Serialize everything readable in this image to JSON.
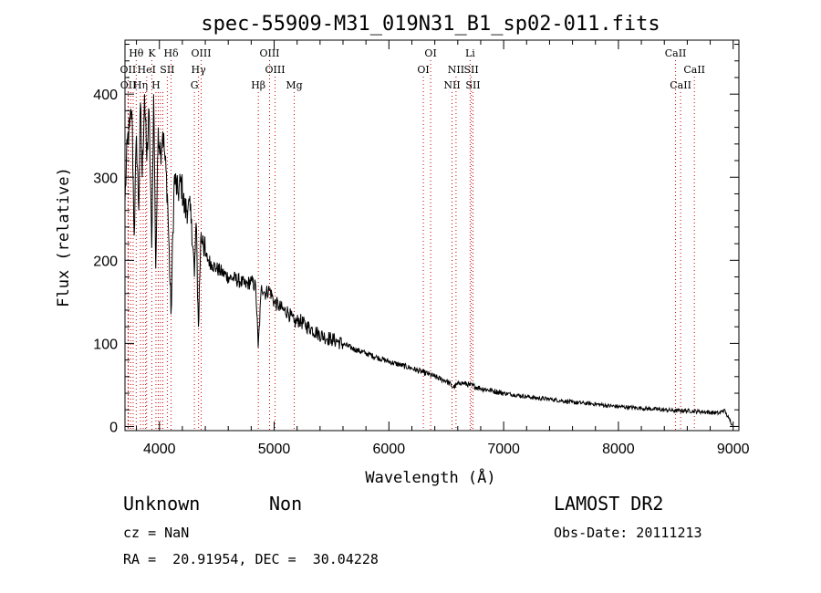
{
  "chart_data": {
    "type": "line",
    "title": "spec-55909-M31_019N31_B1_sp02-011.fits",
    "xlabel": "Wavelength (Å)",
    "ylabel": "Flux (relative)",
    "xlim": [
      3700,
      9050
    ],
    "ylim": [
      -5,
      465
    ],
    "xticks": [
      4000,
      5000,
      6000,
      7000,
      8000,
      9000
    ],
    "yticks": [
      0,
      100,
      200,
      300,
      400
    ],
    "grid": false,
    "line_color": "#000000",
    "marker_color": "#cc0000",
    "series": [
      {
        "x": [
          3700,
          3720,
          3740,
          3760,
          3780,
          3800,
          3820,
          3835,
          3850,
          3870,
          3890,
          3910,
          3933,
          3950,
          3968,
          3990,
          4010,
          4030,
          4050,
          4070,
          4101,
          4130,
          4160,
          4190,
          4220,
          4250,
          4280,
          4305,
          4320,
          4340,
          4360,
          4380,
          4400,
          4430,
          4460,
          4500,
          4550,
          4600,
          4650,
          4700,
          4750,
          4800,
          4840,
          4861,
          4890,
          4920,
          4960,
          5000,
          5040,
          5080,
          5120,
          5175,
          5220,
          5270,
          5320,
          5380,
          5440,
          5500,
          5560,
          5620,
          5700,
          5800,
          5900,
          6000,
          6100,
          6200,
          6300,
          6350,
          6400,
          6450,
          6500,
          6563,
          6620,
          6700,
          6800,
          6900,
          7000,
          7100,
          7200,
          7300,
          7400,
          7500,
          7600,
          7700,
          7800,
          7900,
          8000,
          8100,
          8200,
          8300,
          8400,
          8500,
          8600,
          8700,
          8800,
          8880,
          8920,
          8960,
          8990
        ],
        "y": [
          270,
          340,
          360,
          380,
          230,
          350,
          260,
          390,
          300,
          400,
          320,
          380,
          215,
          400,
          190,
          360,
          330,
          355,
          320,
          280,
          135,
          300,
          280,
          295,
          260,
          265,
          250,
          180,
          245,
          120,
          225,
          230,
          205,
          200,
          195,
          190,
          185,
          180,
          178,
          175,
          170,
          175,
          168,
          95,
          170,
          160,
          165,
          150,
          145,
          140,
          138,
          125,
          128,
          122,
          118,
          112,
          108,
          105,
          102,
          98,
          93,
          88,
          83,
          78,
          74,
          70,
          65,
          63,
          60,
          57,
          55,
          47,
          53,
          50,
          46,
          43,
          40,
          38,
          36,
          34,
          33,
          31,
          29,
          28,
          27,
          25,
          24,
          23,
          22,
          21,
          20,
          19,
          19,
          18,
          17,
          16,
          20,
          10,
          3
        ]
      }
    ],
    "line_markers": [
      {
        "label": "Hθ",
        "wavelength": 3798,
        "row": 0
      },
      {
        "label": "K",
        "wavelength": 3934,
        "row": 0
      },
      {
        "label": "Hδ",
        "wavelength": 4102,
        "row": 0
      },
      {
        "label": "OIII",
        "wavelength": 4364,
        "row": 0
      },
      {
        "label": "OIII",
        "wavelength": 4960,
        "row": 0
      },
      {
        "label": "OI",
        "wavelength": 6364,
        "row": 0
      },
      {
        "label": "Li",
        "wavelength": 6708,
        "row": 0
      },
      {
        "label": "CaII",
        "wavelength": 8498,
        "row": 0
      },
      {
        "label": "OII",
        "wavelength": 3727,
        "row": 1
      },
      {
        "label": "HeI",
        "wavelength": 3889,
        "row": 1
      },
      {
        "label": "SII",
        "wavelength": 4069,
        "row": 1
      },
      {
        "label": "Hγ",
        "wavelength": 4341,
        "row": 1
      },
      {
        "label": "OIII",
        "wavelength": 5008,
        "row": 1
      },
      {
        "label": "OI",
        "wavelength": 6300,
        "row": 1
      },
      {
        "label": "NII",
        "wavelength": 6585,
        "row": 1
      },
      {
        "label": "SII",
        "wavelength": 6718,
        "row": 1
      },
      {
        "label": "CaII",
        "wavelength": 8662,
        "row": 1
      },
      {
        "label": "OII",
        "wavelength": 3729,
        "row": 2
      },
      {
        "label": "Hη",
        "wavelength": 3835,
        "row": 2
      },
      {
        "label": "H",
        "wavelength": 3970,
        "row": 2
      },
      {
        "label": "G",
        "wavelength": 4305,
        "row": 2
      },
      {
        "label": "Hβ",
        "wavelength": 4862,
        "row": 2
      },
      {
        "label": "Mg",
        "wavelength": 5175,
        "row": 2
      },
      {
        "label": "NII",
        "wavelength": 6550,
        "row": 2
      },
      {
        "label": "SII",
        "wavelength": 6733,
        "row": 2
      },
      {
        "label": "CaII",
        "wavelength": 8542,
        "row": 2
      }
    ],
    "extra_marker_lines": [
      3750,
      3771,
      3859,
      3880,
      3990,
      4009,
      4030
    ]
  },
  "info": {
    "class_text": "Unknown",
    "subclass_text": "Non",
    "survey_text": "LAMOST DR2",
    "cz_text": "cz = NaN",
    "obsdate_text": "Obs-Date: 20111213",
    "radec_text": "RA =  20.91954, DEC =  30.04228"
  }
}
